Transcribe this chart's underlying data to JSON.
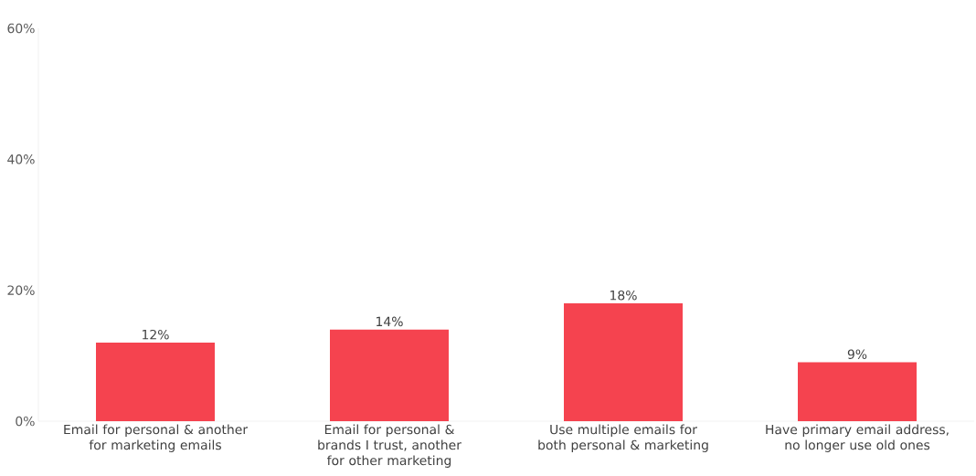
{
  "chart_data": {
    "type": "bar",
    "categories": [
      "Email for personal & another for marketing emails",
      "Email for personal & brands I trust, another for other marketing",
      "Use multiple emails for both personal & marketing",
      "Have primary email address, no longer use old ones"
    ],
    "values": [
      12,
      14,
      18,
      9
    ],
    "value_labels": [
      "12%",
      "14%",
      "18%",
      "9%"
    ],
    "color": "#f5434f",
    "ylim": [
      0,
      60
    ],
    "yticks": [
      {
        "value": 0,
        "label": "0%"
      },
      {
        "value": 20,
        "label": "20%"
      },
      {
        "value": 40,
        "label": "40%"
      },
      {
        "value": 60,
        "label": "60%"
      }
    ]
  }
}
